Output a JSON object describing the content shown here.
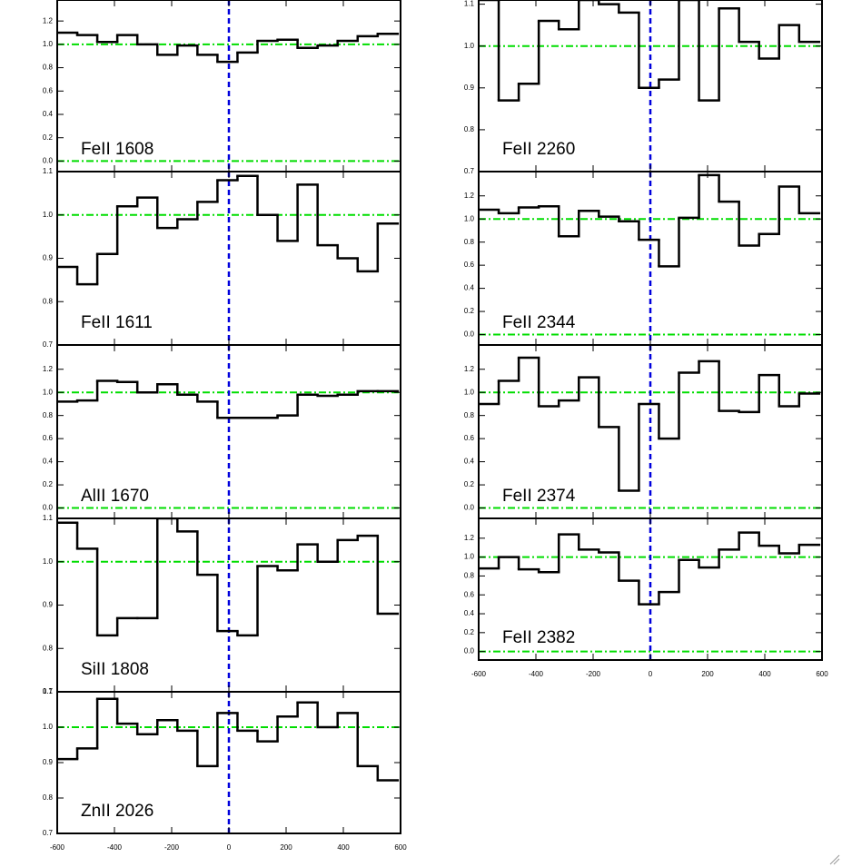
{
  "chart_data": [
    {
      "type": "step",
      "label": "FeII 1608",
      "color": "#000000",
      "hline_color": "#00dd00",
      "vline_color": "#0000dd",
      "x": [
        -565,
        -495,
        -425,
        -355,
        -285,
        -215,
        -145,
        -75,
        -5,
        65,
        135,
        205,
        275,
        345,
        415,
        485,
        555
      ],
      "values": [
        1.1,
        1.08,
        1.02,
        1.08,
        1.0,
        0.91,
        0.99,
        0.91,
        0.85,
        0.93,
        1.03,
        1.04,
        0.97,
        0.99,
        1.03,
        1.07,
        1.09
      ],
      "xlim": [
        -600,
        600
      ],
      "ylim": [
        -0.09,
        1.38
      ],
      "xticks": [
        -600,
        -400,
        -200,
        0,
        200,
        400,
        600
      ],
      "yticks": [
        {
          "value": 0,
          "label": "0.0"
        },
        0.2,
        0.4,
        0.6,
        0.8,
        {
          "value": 1,
          "label": "1.0"
        },
        1.2
      ],
      "hlines": [
        1,
        0
      ],
      "vline": 0,
      "show_xtick_labels": false
    },
    {
      "type": "step",
      "label": "FeII 1611",
      "color": "#000000",
      "hline_color": "#00dd00",
      "vline_color": "#0000dd",
      "x": [
        -565,
        -495,
        -425,
        -355,
        -285,
        -215,
        -145,
        -75,
        -5,
        65,
        135,
        205,
        275,
        345,
        415,
        485,
        555
      ],
      "values": [
        0.88,
        0.84,
        0.91,
        1.02,
        1.04,
        0.97,
        0.99,
        1.03,
        1.08,
        1.09,
        1.0,
        0.94,
        1.07,
        0.93,
        0.9,
        0.87,
        0.98
      ],
      "xlim": [
        -600,
        600
      ],
      "ylim": [
        0.7,
        1.1
      ],
      "xticks": [
        -600,
        -400,
        -200,
        0,
        200,
        400,
        600
      ],
      "yticks": [
        0.7,
        0.8,
        0.9,
        {
          "value": 1,
          "label": "1.0"
        },
        1.1
      ],
      "hlines": [
        1
      ],
      "vline": 0,
      "show_xtick_labels": false
    },
    {
      "type": "step",
      "label": "AlII 1670",
      "color": "#000000",
      "hline_color": "#00dd00",
      "vline_color": "#0000dd",
      "x": [
        -565,
        -495,
        -425,
        -355,
        -285,
        -215,
        -145,
        -75,
        -5,
        65,
        135,
        205,
        275,
        345,
        415,
        485,
        555
      ],
      "values": [
        0.92,
        0.93,
        1.1,
        1.09,
        1.0,
        1.07,
        0.98,
        0.92,
        0.78,
        0.78,
        0.78,
        0.8,
        0.98,
        0.97,
        0.98,
        1.01,
        1.01
      ],
      "xlim": [
        -600,
        600
      ],
      "ylim": [
        -0.09,
        1.41
      ],
      "xticks": [
        -600,
        -400,
        -200,
        0,
        200,
        400,
        600
      ],
      "yticks": [
        {
          "value": 0,
          "label": "0.0"
        },
        0.2,
        0.4,
        0.6,
        0.8,
        {
          "value": 1,
          "label": "1.0"
        },
        1.2
      ],
      "hlines": [
        1,
        0
      ],
      "vline": 0,
      "show_xtick_labels": false
    },
    {
      "type": "step",
      "label": "SiII 1808",
      "color": "#000000",
      "hline_color": "#00dd00",
      "vline_color": "#0000dd",
      "x": [
        -565,
        -495,
        -425,
        -355,
        -285,
        -215,
        -145,
        -75,
        -5,
        65,
        135,
        205,
        275,
        345,
        415,
        485,
        555
      ],
      "values": [
        1.09,
        1.03,
        0.83,
        0.87,
        0.87,
        1.1,
        1.07,
        0.97,
        0.84,
        0.83,
        0.99,
        0.98,
        1.04,
        1.0,
        1.05,
        1.06,
        0.88
      ],
      "xlim": [
        -600,
        600
      ],
      "ylim": [
        0.7,
        1.1
      ],
      "xticks": [
        -600,
        -400,
        -200,
        0,
        200,
        400,
        600
      ],
      "yticks": [
        0.7,
        0.8,
        0.9,
        {
          "value": 1,
          "label": "1.0"
        },
        1.1
      ],
      "hlines": [
        1
      ],
      "vline": 0,
      "show_xtick_labels": false
    },
    {
      "type": "step",
      "label": "ZnII 2026",
      "color": "#000000",
      "hline_color": "#00dd00",
      "vline_color": "#0000dd",
      "x": [
        -565,
        -495,
        -425,
        -355,
        -285,
        -215,
        -145,
        -75,
        -5,
        65,
        135,
        205,
        275,
        345,
        415,
        485,
        555
      ],
      "values": [
        0.91,
        0.94,
        1.08,
        1.01,
        0.98,
        1.02,
        0.99,
        0.89,
        1.04,
        0.99,
        0.96,
        1.03,
        1.07,
        1.0,
        1.04,
        0.89,
        0.85
      ],
      "xlim": [
        -600,
        600
      ],
      "ylim": [
        0.7,
        1.1
      ],
      "xticks": [
        -600,
        -400,
        -200,
        0,
        200,
        400,
        600
      ],
      "yticks": [
        0.7,
        0.8,
        0.9,
        {
          "value": 1,
          "label": "1.0"
        },
        1.1
      ],
      "hlines": [
        1
      ],
      "vline": 0,
      "show_xtick_labels": true
    },
    {
      "type": "step",
      "label": "FeII 2260",
      "color": "#000000",
      "hline_color": "#00dd00",
      "vline_color": "#0000dd",
      "x": [
        -565,
        -495,
        -425,
        -355,
        -285,
        -215,
        -145,
        -75,
        -5,
        65,
        135,
        205,
        275,
        345,
        415,
        485,
        555
      ],
      "values": [
        1.11,
        0.87,
        0.91,
        1.06,
        1.04,
        1.11,
        1.1,
        1.08,
        0.9,
        0.92,
        1.11,
        0.87,
        1.09,
        1.01,
        0.97,
        1.05,
        1.01
      ],
      "xlim": [
        -600,
        600
      ],
      "ylim": [
        0.7,
        1.11
      ],
      "xticks": [
        -600,
        -400,
        -200,
        0,
        200,
        400,
        600
      ],
      "yticks": [
        0.7,
        0.8,
        0.9,
        {
          "value": 1,
          "label": "1.0"
        },
        1.1
      ],
      "hlines": [
        1
      ],
      "vline": 0,
      "show_xtick_labels": false
    },
    {
      "type": "step",
      "label": "FeII 2344",
      "color": "#000000",
      "hline_color": "#00dd00",
      "vline_color": "#0000dd",
      "x": [
        -565,
        -495,
        -425,
        -355,
        -285,
        -215,
        -145,
        -75,
        -5,
        65,
        135,
        205,
        275,
        345,
        415,
        485,
        555
      ],
      "values": [
        1.08,
        1.05,
        1.1,
        1.11,
        0.85,
        1.07,
        1.02,
        0.98,
        0.82,
        0.59,
        1.01,
        1.38,
        1.15,
        0.77,
        0.87,
        1.28,
        1.05
      ],
      "xlim": [
        -600,
        600
      ],
      "ylim": [
        -0.09,
        1.41
      ],
      "xticks": [
        -600,
        -400,
        -200,
        0,
        200,
        400,
        600
      ],
      "yticks": [
        {
          "value": 0,
          "label": "0.0"
        },
        0.2,
        0.4,
        0.6,
        0.8,
        {
          "value": 1,
          "label": "1.0"
        },
        1.2
      ],
      "hlines": [
        1,
        0
      ],
      "vline": 0,
      "show_xtick_labels": false
    },
    {
      "type": "step",
      "label": "FeII 2374",
      "color": "#000000",
      "hline_color": "#00dd00",
      "vline_color": "#0000dd",
      "x": [
        -565,
        -495,
        -425,
        -355,
        -285,
        -215,
        -145,
        -75,
        -5,
        65,
        135,
        205,
        275,
        345,
        415,
        485,
        555
      ],
      "values": [
        0.9,
        1.1,
        1.3,
        0.88,
        0.93,
        1.13,
        0.7,
        0.15,
        0.9,
        0.6,
        1.17,
        1.27,
        0.84,
        0.83,
        1.15,
        0.88,
        0.99
      ],
      "xlim": [
        -600,
        600
      ],
      "ylim": [
        -0.09,
        1.41
      ],
      "xticks": [
        -600,
        -400,
        -200,
        0,
        200,
        400,
        600
      ],
      "yticks": [
        {
          "value": 0,
          "label": "0.0"
        },
        0.2,
        0.4,
        0.6,
        0.8,
        {
          "value": 1,
          "label": "1.0"
        },
        1.2
      ],
      "hlines": [
        1,
        0
      ],
      "vline": 0,
      "show_xtick_labels": false
    },
    {
      "type": "step",
      "label": "FeII 2382",
      "color": "#000000",
      "hline_color": "#00dd00",
      "vline_color": "#0000dd",
      "x": [
        -565,
        -495,
        -425,
        -355,
        -285,
        -215,
        -145,
        -75,
        -5,
        65,
        135,
        205,
        275,
        345,
        415,
        485,
        555
      ],
      "values": [
        0.88,
        1.0,
        0.87,
        0.84,
        1.24,
        1.08,
        1.05,
        0.75,
        0.5,
        0.63,
        0.97,
        0.89,
        1.08,
        1.26,
        1.12,
        1.04,
        1.13
      ],
      "xlim": [
        -600,
        600
      ],
      "ylim": [
        -0.09,
        1.41
      ],
      "xticks": [
        -600,
        -400,
        -200,
        0,
        200,
        400,
        600
      ],
      "yticks": [
        {
          "value": 0,
          "label": "0.0"
        },
        0.2,
        0.4,
        0.6,
        0.8,
        {
          "value": 1,
          "label": "1.0"
        },
        1.2
      ],
      "hlines": [
        1,
        0
      ],
      "vline": 0,
      "show_xtick_labels": true
    }
  ]
}
